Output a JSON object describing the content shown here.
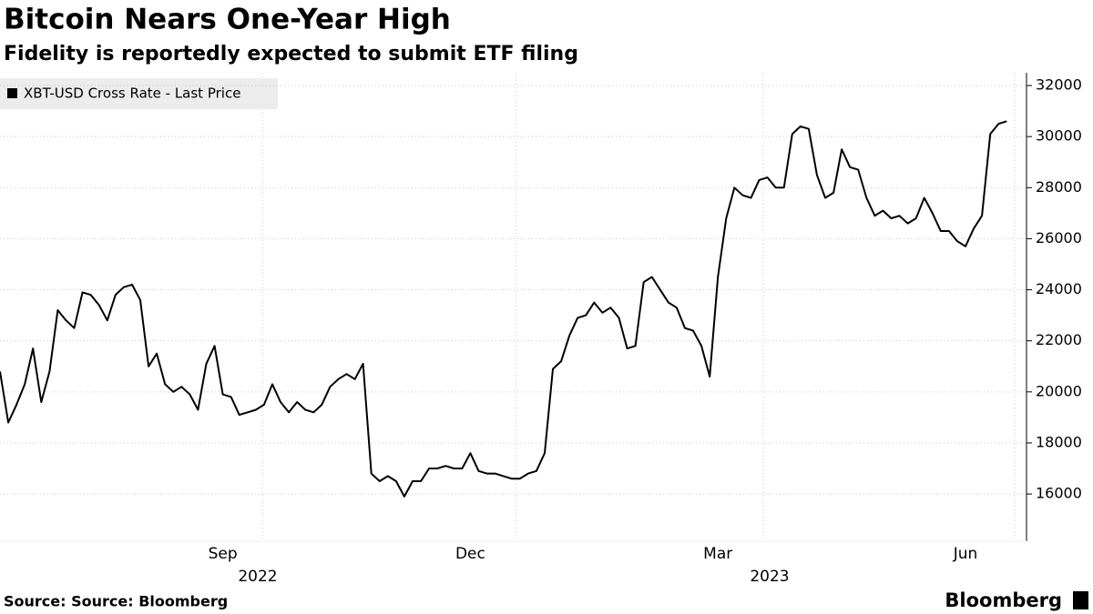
{
  "chart_data": {
    "type": "line",
    "title": "Bitcoin Nears One-Year High",
    "subtitle": "Fidelity is reportedly expected to submit ETF filing",
    "source": "Source: Source: Bloomberg",
    "brand": "Bloomberg",
    "x_group_labels": [
      "2022",
      "2023"
    ],
    "categories": [
      null,
      null,
      null,
      null,
      null,
      null,
      null,
      null,
      null,
      null,
      null,
      null,
      null,
      null,
      null,
      null,
      null,
      null,
      null,
      null,
      null,
      null,
      null,
      null,
      null,
      null,
      null,
      "Sep",
      null,
      null,
      null,
      null,
      null,
      null,
      null,
      null,
      null,
      null,
      null,
      null,
      null,
      null,
      null,
      null,
      null,
      null,
      null,
      null,
      null,
      null,
      null,
      null,
      null,
      null,
      null,
      null,
      null,
      "Dec",
      null,
      null,
      null,
      null,
      null,
      null,
      null,
      null,
      null,
      null,
      null,
      null,
      null,
      null,
      null,
      null,
      null,
      null,
      null,
      null,
      null,
      null,
      null,
      null,
      null,
      null,
      null,
      null,
      null,
      "Mar",
      null,
      null,
      null,
      null,
      null,
      null,
      null,
      null,
      null,
      null,
      null,
      null,
      null,
      null,
      null,
      null,
      null,
      null,
      null,
      null,
      null,
      null,
      null,
      null,
      null,
      null,
      null,
      null,
      null,
      "Jun",
      null,
      null,
      null,
      null,
      null
    ],
    "series": [
      {
        "name": "XBT-USD Cross Rate - Last Price",
        "color": "#000000",
        "values": [
          20800,
          18800,
          19500,
          20300,
          21700,
          19600,
          20800,
          23200,
          22800,
          22500,
          23900,
          23800,
          23400,
          22800,
          23800,
          24100,
          24200,
          23600,
          21000,
          21500,
          20300,
          20000,
          20200,
          19900,
          19300,
          21100,
          21800,
          19900,
          19800,
          19100,
          19200,
          19300,
          19500,
          20300,
          19600,
          19200,
          19600,
          19300,
          19200,
          19500,
          20200,
          20500,
          20700,
          20500,
          21100,
          16800,
          16500,
          16700,
          16500,
          15900,
          16500,
          16500,
          17000,
          17000,
          17100,
          17000,
          17000,
          17600,
          16900,
          16800,
          16800,
          16700,
          16600,
          16600,
          16800,
          16900,
          17600,
          20900,
          21200,
          22200,
          22900,
          23000,
          23500,
          23100,
          23300,
          22900,
          21700,
          21800,
          24300,
          24500,
          24000,
          23500,
          23300,
          22500,
          22400,
          21800,
          20600,
          24500,
          26800,
          28000,
          27700,
          27600,
          28300,
          28400,
          28000,
          28000,
          30100,
          30400,
          30300,
          28500,
          27600,
          27800,
          29500,
          28800,
          28700,
          27600,
          26900,
          27100,
          26800,
          26900,
          26600,
          26800,
          27600,
          27000,
          26300,
          26300,
          25900,
          25700,
          26400,
          26900,
          30100,
          30500,
          30600
        ]
      }
    ],
    "ylim": [
      14150,
      32500
    ],
    "yticks": [
      16000,
      18000,
      20000,
      22000,
      24000,
      26000,
      28000,
      30000,
      32000
    ],
    "grid": true,
    "legend": "top-left"
  }
}
